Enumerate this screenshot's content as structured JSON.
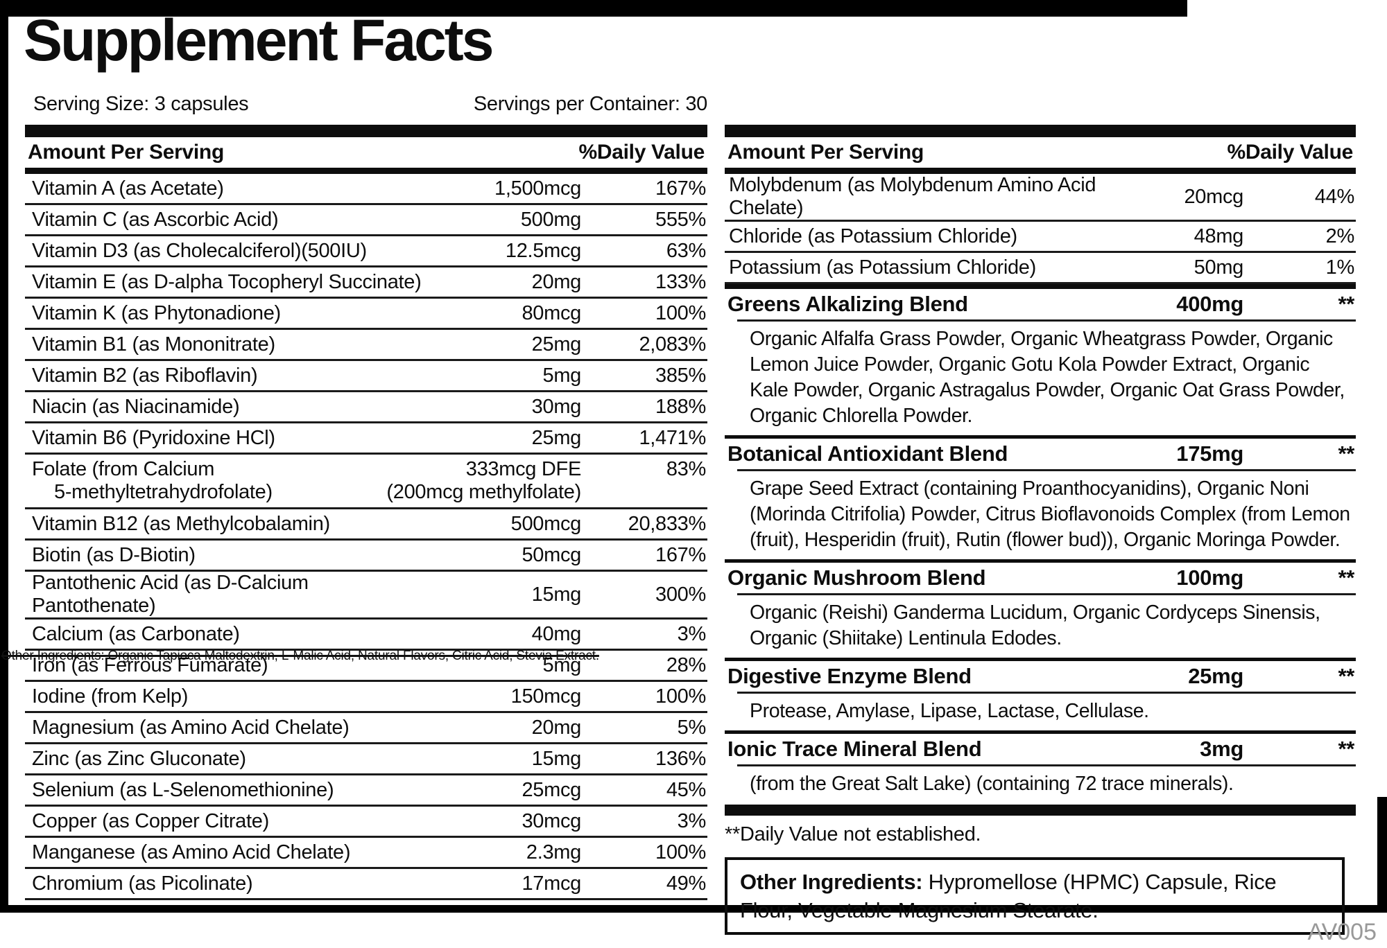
{
  "title": "Supplement Facts",
  "serving": {
    "size": "Serving Size: 3 capsules",
    "per_container": "Servings per Container: 30"
  },
  "left_table": {
    "header": {
      "amount": "Amount Per Serving",
      "dv": "%Daily Value"
    },
    "rows": [
      {
        "name": "Vitamin A (as Acetate)",
        "amount": "1,500mcg",
        "dv": "167%"
      },
      {
        "name": "Vitamin C (as Ascorbic Acid)",
        "amount": "500mg",
        "dv": "555%"
      },
      {
        "name": "Vitamin D3 (as Cholecalciferol)(500IU)",
        "amount": "12.5mcg",
        "dv": "63%"
      },
      {
        "name": "Vitamin E (as D-alpha Tocopheryl Succinate)",
        "amount": "20mg",
        "dv": "133%"
      },
      {
        "name": "Vitamin K (as Phytonadione)",
        "amount": "80mcg",
        "dv": "100%"
      },
      {
        "name": "Vitamin B1 (as Mononitrate)",
        "amount": "25mg",
        "dv": "2,083%"
      },
      {
        "name": "Vitamin B2 (as Riboflavin)",
        "amount": "5mg",
        "dv": "385%"
      },
      {
        "name": "Niacin (as Niacinamide)",
        "amount": "30mg",
        "dv": "188%"
      },
      {
        "name": "Vitamin B6 (Pyridoxine HCl)",
        "amount": "25mg",
        "dv": "1,471%"
      },
      {
        "name": "Folate (from Calcium",
        "name2": "5-methyltetrahydrofolate)",
        "amount": "333mcg DFE",
        "amount2": "(200mcg methylfolate)",
        "dv": "83%"
      },
      {
        "name": "Vitamin B12 (as Methylcobalamin)",
        "amount": "500mcg",
        "dv": "20,833%"
      },
      {
        "name": "Biotin (as D-Biotin)",
        "amount": "50mcg",
        "dv": "167%"
      },
      {
        "name": "Pantothenic Acid (as D-Calcium Pantothenate)",
        "amount": "15mg",
        "dv": "300%"
      },
      {
        "name": "Calcium (as Carbonate)",
        "amount": "40mg",
        "dv": "3%"
      },
      {
        "name": "Iron (as Ferrous Fumarate)",
        "amount": "5mg",
        "dv": "28%"
      },
      {
        "name": "Iodine (from Kelp)",
        "amount": "150mcg",
        "dv": "100%"
      },
      {
        "name": "Magnesium (as Amino Acid Chelate)",
        "amount": "20mg",
        "dv": "5%"
      },
      {
        "name": "Zinc (as Zinc Gluconate)",
        "amount": "15mg",
        "dv": "136%"
      },
      {
        "name": "Selenium (as L-Selenomethionine)",
        "amount": "25mcg",
        "dv": "45%"
      },
      {
        "name": "Copper (as Copper Citrate)",
        "amount": "30mcg",
        "dv": "3%"
      },
      {
        "name": "Manganese (as Amino Acid Chelate)",
        "amount": "2.3mg",
        "dv": "100%"
      },
      {
        "name": "Chromium (as Picolinate)",
        "amount": "17mcg",
        "dv": "49%"
      }
    ]
  },
  "overlay_strikethrough": "Other Ingredients: Organic Tapioca Maltodextrin, L-Malic Acid, Natural Flavors, Citric Acid, Stevia Extract.",
  "right_table": {
    "header": {
      "amount": "Amount Per Serving",
      "dv": "%Daily Value"
    },
    "rows": [
      {
        "name": "Molybdenum (as Molybdenum Amino Acid Chelate)",
        "amount": "20mcg",
        "dv": "44%"
      },
      {
        "name": "Chloride (as Potassium Chloride)",
        "amount": "48mg",
        "dv": "2%"
      },
      {
        "name": "Potassium (as Potassium Chloride)",
        "amount": "50mg",
        "dv": "1%"
      }
    ],
    "blends": [
      {
        "name": "Greens Alkalizing Blend",
        "amount": "400mg",
        "dv": "**",
        "desc": "Organic Alfalfa Grass Powder, Organic Wheatgrass Powder, Organic Lemon Juice Powder, Organic Gotu Kola Powder Extract, Organic Kale Powder, Organic Astragalus Powder, Organic Oat Grass Powder, Organic Chlorella Powder."
      },
      {
        "name": "Botanical Antioxidant Blend",
        "amount": "175mg",
        "dv": "**",
        "desc": "Grape Seed Extract (containing Proanthocyanidins), Organic Noni (Morinda Citrifolia) Powder, Citrus Bioflavonoids Complex (from Lemon (fruit), Hesperidin (fruit), Rutin (flower bud)), Organic Moringa Powder."
      },
      {
        "name": "Organic Mushroom Blend",
        "amount": "100mg",
        "dv": "**",
        "desc": "Organic (Reishi) Ganderma Lucidum, Organic Cordyceps Sinensis, Organic (Shiitake) Lentinula Edodes."
      },
      {
        "name": "Digestive Enzyme Blend",
        "amount": "25mg",
        "dv": "**",
        "desc": "Protease, Amylase, Lipase, Lactase, Cellulase."
      },
      {
        "name": "Ionic Trace Mineral Blend",
        "amount": "3mg",
        "dv": "**",
        "desc": "(from the Great Salt Lake) (containing 72 trace minerals)."
      }
    ],
    "footnote": "**Daily Value not established."
  },
  "other_ingredients": {
    "label": "Other Ingredients:",
    "text": " Hypromellose (HPMC) Capsule, Rice Flour, Vegetable Magnesium Stearate."
  },
  "footer_code": "AV005",
  "colors": {
    "ink": "#0d0d0d",
    "muted": "#999999"
  }
}
